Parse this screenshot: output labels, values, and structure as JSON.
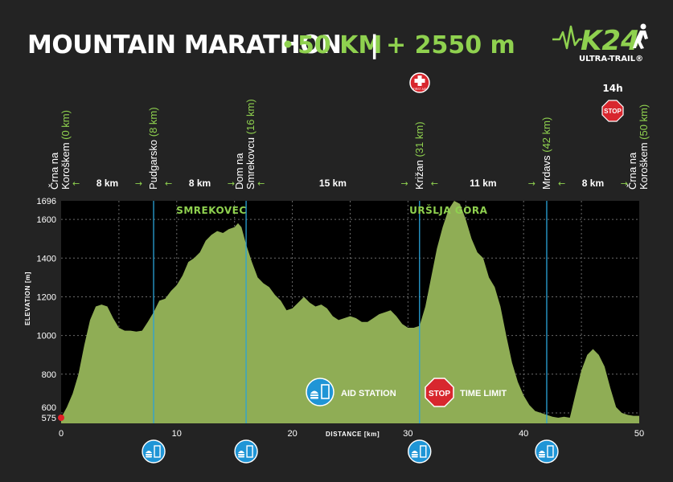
{
  "header": {
    "title": "MOUNTAIN MARATHON",
    "distance": "50 KM",
    "separator": "|",
    "elevation_gain": "+ 2550 m",
    "logo": {
      "name": "K24",
      "subtitle": "ULTRA-TRAIL®"
    }
  },
  "colors": {
    "profile_fill": "#8fad55",
    "accent": "#8fd14f",
    "aid_blue": "#1f95d6",
    "stop_red": "#d8272e",
    "background": "#232323"
  },
  "icons": {
    "aid_station": "food-drink-icon",
    "time_limit": "stop-sign-icon",
    "first_aid": "first-aid-icon",
    "mountain_logo": "runner-logo-icon"
  },
  "first_aid": {
    "label": "FIRST AID",
    "km": 31
  },
  "time_limit": {
    "hours": "14h",
    "sign": "STOP",
    "km": 50
  },
  "peaks": [
    {
      "label": "SMREKOVEC",
      "km": 13
    },
    {
      "label": "URŠLJA GORA",
      "km": 33.5
    }
  ],
  "legend": {
    "aid_station": "AID STATION",
    "time_limit": "TIME LIMIT",
    "time_limit_sign": "STOP"
  },
  "chart_data": {
    "type": "area",
    "title": "",
    "xlabel": "DISTANCE [km]",
    "ylabel": "ELEVATION [m]",
    "xlim": [
      0,
      50
    ],
    "ylim": [
      575,
      1696
    ],
    "x_ticks": [
      0,
      10,
      20,
      30,
      40,
      50
    ],
    "y_ticks": [
      575,
      600,
      800,
      1000,
      1200,
      1400,
      1600,
      1696
    ],
    "grid": true,
    "series": [
      {
        "x": [
          0,
          0.5,
          1,
          1.5,
          2,
          2.5,
          3,
          3.5,
          4,
          4.5,
          5,
          5.5,
          6,
          6.5,
          7,
          7.5,
          8,
          8.5,
          9,
          9.5,
          10,
          10.5,
          11,
          11.5,
          12,
          12.5,
          13,
          13.5,
          14,
          14.5,
          15,
          15.3,
          15.6,
          16,
          16.5,
          17,
          17.5,
          18,
          18.5,
          19,
          19.5,
          20,
          20.5,
          21,
          21.5,
          22,
          22.5,
          23,
          23.5,
          24,
          24.5,
          25,
          25.5,
          26,
          26.5,
          27,
          27.5,
          28,
          28.5,
          29,
          29.5,
          30,
          30.5,
          31,
          31.5,
          32,
          32.5,
          33,
          33.5,
          34,
          34.5,
          35,
          35.5,
          36,
          36.5,
          37,
          37.5,
          38,
          38.5,
          39,
          39.5,
          40,
          40.5,
          41,
          41.5,
          42,
          42.5,
          43,
          43.5,
          44,
          44.5,
          45,
          45.5,
          46,
          46.5,
          47,
          47.5,
          48,
          48.5,
          49,
          49.5,
          50
        ],
        "y": [
          575,
          630,
          700,
          800,
          950,
          1080,
          1150,
          1160,
          1150,
          1090,
          1040,
          1025,
          1025,
          1020,
          1025,
          1070,
          1120,
          1180,
          1190,
          1230,
          1260,
          1310,
          1380,
          1400,
          1430,
          1490,
          1520,
          1540,
          1530,
          1550,
          1560,
          1580,
          1560,
          1470,
          1380,
          1300,
          1270,
          1250,
          1210,
          1180,
          1130,
          1140,
          1170,
          1200,
          1170,
          1150,
          1160,
          1140,
          1100,
          1080,
          1090,
          1100,
          1090,
          1070,
          1070,
          1090,
          1110,
          1120,
          1130,
          1100,
          1060,
          1040,
          1040,
          1050,
          1150,
          1300,
          1450,
          1560,
          1650,
          1696,
          1680,
          1600,
          1500,
          1430,
          1400,
          1300,
          1250,
          1150,
          1000,
          860,
          760,
          690,
          640,
          610,
          600,
          590,
          580,
          575,
          580,
          575,
          700,
          820,
          900,
          930,
          900,
          840,
          730,
          630,
          600,
          590,
          585,
          585
        ]
      }
    ],
    "stations": [
      {
        "name": "Črna na Koroškem",
        "name_line1": "Črna na",
        "name_line2": "Koroškem",
        "km": 0,
        "km_label": "(0 km)",
        "aid": false
      },
      {
        "name": "Pudgarsko",
        "name_line1": "",
        "name_line2": "Pudgarsko",
        "km": 8,
        "km_label": "(8 km)",
        "aid": true
      },
      {
        "name": "Dom na Smrekovcu",
        "name_line1": "Dom na",
        "name_line2": "Smrekovcu",
        "km": 16,
        "km_label": "(16 km)",
        "aid": true
      },
      {
        "name": "Križan",
        "name_line1": "",
        "name_line2": "Križan",
        "km": 31,
        "km_label": "(31 km)",
        "aid": true
      },
      {
        "name": "Mrdavs",
        "name_line1": "",
        "name_line2": "Mrdavs",
        "km": 42,
        "km_label": "(42 km)",
        "aid": true
      },
      {
        "name": "Črna na Koroškem",
        "name_line1": "Črna na",
        "name_line2": "Koroškem",
        "km": 50,
        "km_label": "(50 km)",
        "aid": false
      }
    ],
    "segments": [
      {
        "from_km": 0,
        "to_km": 8,
        "label": "8 km"
      },
      {
        "from_km": 8,
        "to_km": 16,
        "label": "8 km"
      },
      {
        "from_km": 16,
        "to_km": 31,
        "label": "15 km"
      },
      {
        "from_km": 31,
        "to_km": 42,
        "label": "11 km"
      },
      {
        "from_km": 42,
        "to_km": 50,
        "label": "8 km"
      }
    ]
  }
}
